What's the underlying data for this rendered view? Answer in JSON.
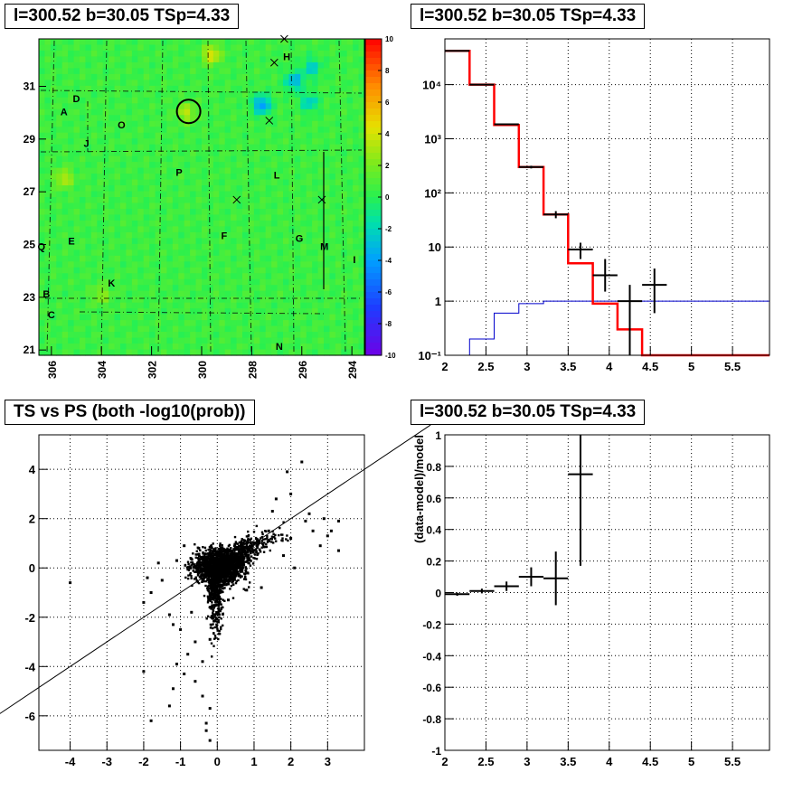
{
  "panels": {
    "p1": {
      "title": "l=300.52 b=30.05 TSp=4.33"
    },
    "p2": {
      "title": "l=300.52 b=30.05 TSp=4.33"
    },
    "p3": {
      "title": "TS vs PS (both -log10(prob))"
    },
    "p4": {
      "title": "l=300.52 b=30.05 TSp=4.33"
    }
  },
  "colors": {
    "data": "#000000",
    "model": "#ff0000",
    "background_model": "#0000cc",
    "grid": "#000000"
  },
  "chart_data": [
    {
      "type": "heatmap",
      "title": "l=300.52 b=30.05 TSp=4.33",
      "xlim": [
        306.5,
        293.5
      ],
      "ylim": [
        20.8,
        32.8
      ],
      "xticks": [
        306,
        304,
        302,
        300,
        298,
        296,
        294
      ],
      "yticks": [
        21,
        23,
        25,
        27,
        29,
        31
      ],
      "colorbar": {
        "min": -10,
        "max": 10,
        "ticks": [
          10,
          8,
          6,
          4,
          2,
          0,
          -2,
          -4,
          -6,
          -8,
          -10
        ]
      },
      "background_value": 0.5,
      "hotspots": [
        {
          "l": 297.6,
          "b": 30.3,
          "value": -5
        },
        {
          "l": 296.3,
          "b": 31.2,
          "value": -4
        },
        {
          "l": 295.7,
          "b": 30.4,
          "value": -3
        },
        {
          "l": 295.6,
          "b": 31.7,
          "value": -3
        },
        {
          "l": 299.6,
          "b": 32.2,
          "value": 4
        },
        {
          "l": 300.6,
          "b": 30.0,
          "value": 3
        },
        {
          "l": 305.5,
          "b": 27.5,
          "value": 3
        },
        {
          "l": 304.0,
          "b": 23.1,
          "value": 2
        }
      ],
      "circle": {
        "l": 300.52,
        "b": 30.05
      },
      "labels": [
        {
          "text": "A",
          "l": 305.5,
          "b": 29.9
        },
        {
          "text": "D",
          "l": 305.0,
          "b": 30.4
        },
        {
          "text": "O",
          "l": 303.2,
          "b": 29.4
        },
        {
          "text": "J",
          "l": 304.6,
          "b": 28.7
        },
        {
          "text": "P",
          "l": 300.9,
          "b": 27.6
        },
        {
          "text": "L",
          "l": 297.0,
          "b": 27.5
        },
        {
          "text": "H",
          "l": 296.6,
          "b": 32.0
        },
        {
          "text": "E",
          "l": 305.2,
          "b": 25.0
        },
        {
          "text": "F",
          "l": 299.1,
          "b": 25.2
        },
        {
          "text": "G",
          "l": 296.1,
          "b": 25.1
        },
        {
          "text": "M",
          "l": 295.1,
          "b": 24.8
        },
        {
          "text": "I",
          "l": 293.9,
          "b": 24.3
        },
        {
          "text": "Q",
          "l": 306.4,
          "b": 24.8
        },
        {
          "text": "K",
          "l": 303.6,
          "b": 23.4
        },
        {
          "text": "B",
          "l": 306.2,
          "b": 23.0
        },
        {
          "text": "C",
          "l": 306.0,
          "b": 22.2
        },
        {
          "text": "N",
          "l": 296.9,
          "b": 21.0
        }
      ],
      "crosses": [
        {
          "l": 296.7,
          "b": 32.8
        },
        {
          "l": 297.1,
          "b": 31.9
        },
        {
          "l": 297.3,
          "b": 29.7
        },
        {
          "l": 298.6,
          "b": 26.7
        },
        {
          "l": 295.2,
          "b": 26.7
        }
      ]
    },
    {
      "type": "histogram",
      "title": "l=300.52 b=30.05 TSp=4.33",
      "xlim": [
        2,
        5.95
      ],
      "ylim": [
        0.1,
        70000
      ],
      "ylog": true,
      "xticks": [
        2,
        2.5,
        3,
        3.5,
        4,
        4.5,
        5,
        5.5
      ],
      "yticks": [
        {
          "v": 0.1,
          "label": "10⁻¹"
        },
        {
          "v": 1,
          "label": "1"
        },
        {
          "v": 10,
          "label": "10"
        },
        {
          "v": 100,
          "label": "10²"
        },
        {
          "v": 1000,
          "label": "10³"
        },
        {
          "v": 10000,
          "label": "10⁴"
        }
      ],
      "bins": [
        2.0,
        2.3,
        2.6,
        2.9,
        3.2,
        3.5,
        3.8,
        4.1,
        4.4,
        5.95
      ],
      "model": [
        42000,
        10000,
        1800,
        300,
        40,
        5,
        0.9,
        0.3,
        0.1
      ],
      "background_model": [
        0.1,
        0.2,
        0.6,
        0.9,
        1.0,
        1.0,
        1.0,
        1.0,
        1.0
      ],
      "data": [
        {
          "x": 2.15,
          "y": 42000,
          "err": 200
        },
        {
          "x": 2.45,
          "y": 10000,
          "err": 100
        },
        {
          "x": 2.75,
          "y": 1850,
          "err": 43
        },
        {
          "x": 3.05,
          "y": 300,
          "err": 17
        },
        {
          "x": 3.35,
          "y": 40,
          "err": 6
        },
        {
          "x": 3.65,
          "y": 9,
          "err": 3
        },
        {
          "x": 3.95,
          "y": 3,
          "lo": 1.5,
          "hi": 6
        },
        {
          "x": 4.25,
          "y": 1,
          "lo": 0.1,
          "hi": 2
        },
        {
          "x": 4.55,
          "y": 2,
          "lo": 0.6,
          "hi": 4
        }
      ]
    },
    {
      "type": "scatter",
      "title": "TS vs PS (both -log10(prob))",
      "xlim": [
        -4.85,
        4.0
      ],
      "ylim": [
        -7.4,
        5.4
      ],
      "xticks": [
        -4,
        -3,
        -2,
        -1,
        0,
        1,
        2,
        3
      ],
      "yticks": [
        -6,
        -4,
        -2,
        0,
        2,
        4
      ],
      "line": {
        "slope": 1.0,
        "intercept": 0.0
      },
      "points": [
        [
          -4.0,
          -0.6
        ],
        [
          -1.9,
          -0.4
        ],
        [
          -2.0,
          -4.2
        ],
        [
          -1.8,
          -6.2
        ],
        [
          -1.2,
          -4.9
        ],
        [
          -1.3,
          -5.6
        ],
        [
          -0.3,
          -6.3
        ],
        [
          -0.2,
          -5.7
        ],
        [
          -0.6,
          -4.6
        ],
        [
          -0.8,
          -3.5
        ],
        [
          -0.6,
          -3.0
        ],
        [
          -1.3,
          -1.9
        ],
        [
          -1.0,
          -2.5
        ],
        [
          -0.2,
          -2.9
        ],
        [
          -2.0,
          -1.4
        ],
        [
          -1.8,
          -1.0
        ],
        [
          -1.5,
          -0.5
        ],
        [
          -1.6,
          0.2
        ],
        [
          3.3,
          0.7
        ],
        [
          3.0,
          1.3
        ],
        [
          3.3,
          1.9
        ],
        [
          2.4,
          1.9
        ],
        [
          2.5,
          2.2
        ],
        [
          2.9,
          2.0
        ],
        [
          1.9,
          3.9
        ],
        [
          2.3,
          4.3
        ],
        [
          1.6,
          2.8
        ],
        [
          2.0,
          3.0
        ],
        [
          2.6,
          1.5
        ],
        [
          2.0,
          1.2
        ],
        [
          1.8,
          0.5
        ],
        [
          2.1,
          0.0
        ],
        [
          1.2,
          -0.8
        ],
        [
          0.8,
          -0.9
        ],
        [
          0.3,
          -1.3
        ],
        [
          -0.5,
          0.8
        ],
        [
          -0.9,
          0.9
        ],
        [
          -1.1,
          0.3
        ],
        [
          -0.2,
          -7.0
        ],
        [
          -0.3,
          -6.6
        ],
        [
          -0.4,
          -5.2
        ],
        [
          -0.9,
          -4.3
        ],
        [
          -1.1,
          -3.9
        ],
        [
          1.5,
          2.3
        ],
        [
          2.8,
          0.9
        ],
        [
          3.1,
          1.5
        ],
        [
          1.4,
          1.5
        ],
        [
          -0.7,
          -1.8
        ],
        [
          -1.2,
          -2.3
        ],
        [
          -0.4,
          -3.8
        ]
      ]
    },
    {
      "type": "errorbar",
      "title": "l=300.52 b=30.05 TSp=4.33",
      "xlim": [
        2,
        5.95
      ],
      "ylim": [
        -1,
        1
      ],
      "ylabel": "(data-model)/model",
      "xticks": [
        2,
        2.5,
        3,
        3.5,
        4,
        4.5,
        5,
        5.5
      ],
      "yticks": [
        -1,
        -0.8,
        -0.6,
        -0.4,
        -0.2,
        0,
        0.2,
        0.4,
        0.6,
        0.8,
        1
      ],
      "points": [
        {
          "x0": 2.0,
          "x1": 2.3,
          "y": -0.01,
          "err": 0.01
        },
        {
          "x0": 2.3,
          "x1": 2.6,
          "y": 0.01,
          "err": 0.015
        },
        {
          "x0": 2.6,
          "x1": 2.9,
          "y": 0.04,
          "err": 0.03
        },
        {
          "x0": 2.9,
          "x1": 3.2,
          "y": 0.1,
          "err": 0.06
        },
        {
          "x0": 3.2,
          "x1": 3.5,
          "y": 0.09,
          "err": 0.17
        },
        {
          "x0": 3.5,
          "x1": 3.8,
          "y": 0.75,
          "err": 0.58
        }
      ]
    }
  ]
}
